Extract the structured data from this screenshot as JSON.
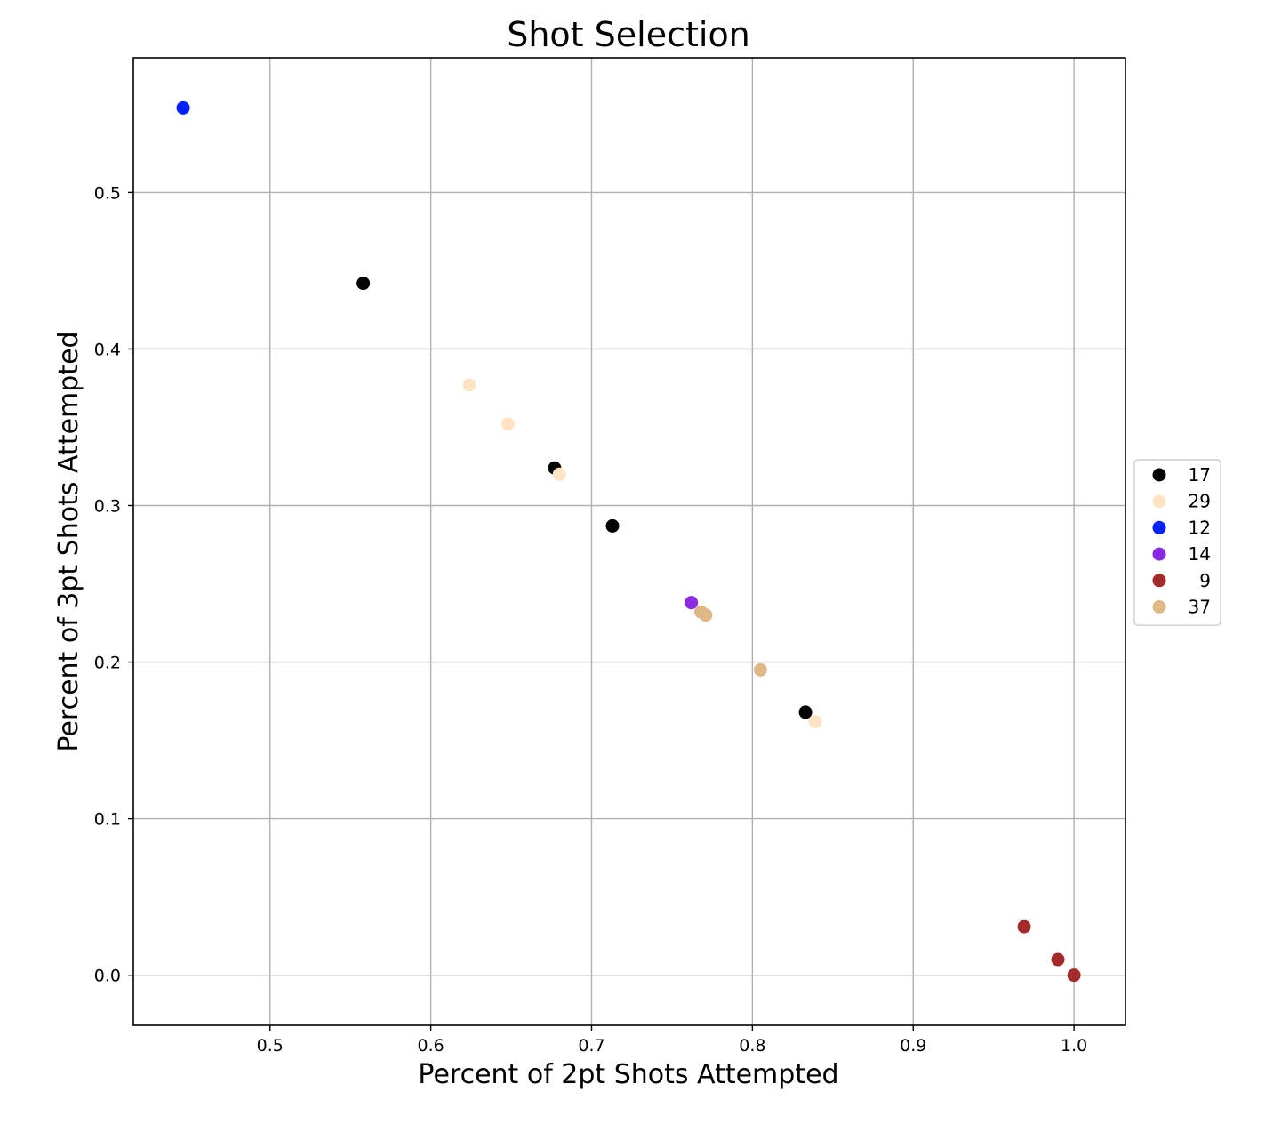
{
  "chart_data": {
    "type": "scatter",
    "title": "Shot Selection",
    "xlabel": "Percent of 2pt Shots Attempted",
    "ylabel": "Percent of 3pt Shots Attempted",
    "xlim": [
      0.415,
      1.032
    ],
    "ylim": [
      -0.032,
      0.586
    ],
    "xticks": [
      0.5,
      0.6,
      0.7,
      0.8,
      0.9,
      1.0
    ],
    "xtick_labels": [
      "0.5",
      "0.6",
      "0.7",
      "0.8",
      "0.9",
      "1.0"
    ],
    "yticks": [
      0.0,
      0.1,
      0.2,
      0.3,
      0.4,
      0.5
    ],
    "ytick_labels": [
      "0.0",
      "0.1",
      "0.2",
      "0.3",
      "0.4",
      "0.5"
    ],
    "grid": true,
    "legend_position": "right-center",
    "series": [
      {
        "name": "17",
        "color": "#000000",
        "points": [
          [
            0.558,
            0.442
          ],
          [
            0.677,
            0.324
          ],
          [
            0.713,
            0.287
          ],
          [
            0.833,
            0.168
          ]
        ]
      },
      {
        "name": "29",
        "color": "#ffe4c4",
        "points": [
          [
            0.624,
            0.377
          ],
          [
            0.648,
            0.352
          ],
          [
            0.68,
            0.32
          ],
          [
            0.839,
            0.162
          ]
        ]
      },
      {
        "name": "12",
        "color": "#0022ff",
        "points": [
          [
            0.446,
            0.554
          ]
        ]
      },
      {
        "name": "14",
        "color": "#8a2be2",
        "points": [
          [
            0.762,
            0.238
          ]
        ]
      },
      {
        "name": "9",
        "color": "#a52a2a",
        "points": [
          [
            0.969,
            0.031
          ],
          [
            0.99,
            0.01
          ],
          [
            1.0,
            0.0
          ]
        ]
      },
      {
        "name": "37",
        "color": "#deb887",
        "points": [
          [
            0.768,
            0.232
          ],
          [
            0.771,
            0.23
          ],
          [
            0.805,
            0.195
          ]
        ]
      }
    ]
  }
}
